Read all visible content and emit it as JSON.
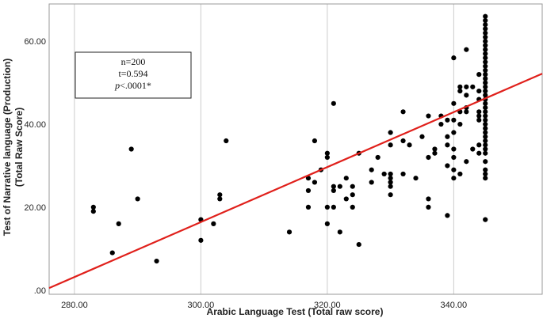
{
  "chart_data": {
    "type": "scatter",
    "title": "",
    "xlabel": "Arabic Language Test (Total raw score)",
    "ylabel_lines": [
      "Test of Narrative language (Production)",
      "(Total Raw Score)"
    ],
    "xlim": [
      276,
      354
    ],
    "ylim": [
      -1,
      69
    ],
    "x_ticks": [
      280,
      300,
      320,
      340
    ],
    "x_tick_labels": [
      "280.00",
      "300.00",
      "320.00",
      "340.00"
    ],
    "y_ticks": [
      0,
      20,
      40,
      60
    ],
    "y_tick_labels": [
      ".00",
      "20.00",
      "40.00",
      "60.00"
    ],
    "grid": {
      "vertical": true,
      "horizontal": false
    },
    "colors": {
      "points": "#000000",
      "fit_line": "#e0201b",
      "grid": "#cccccc",
      "axes": "#999999"
    },
    "annotation": {
      "line1": "n=200",
      "line2": "t=0.594",
      "line3_italic": "p",
      "line3_rest": "<.0001*"
    },
    "fit_line": {
      "x": [
        276,
        354
      ],
      "y": [
        0.5,
        52.2
      ]
    },
    "points": [
      [
        283,
        20
      ],
      [
        283,
        19
      ],
      [
        286,
        9
      ],
      [
        287,
        16
      ],
      [
        289,
        34
      ],
      [
        290,
        22
      ],
      [
        293,
        7
      ],
      [
        300,
        17
      ],
      [
        300,
        12
      ],
      [
        302,
        16
      ],
      [
        303,
        23
      ],
      [
        303,
        22
      ],
      [
        304,
        36
      ],
      [
        314,
        14
      ],
      [
        317,
        27
      ],
      [
        317,
        24
      ],
      [
        317,
        20
      ],
      [
        318,
        36
      ],
      [
        318,
        26
      ],
      [
        319,
        29
      ],
      [
        320,
        33
      ],
      [
        320,
        32
      ],
      [
        320,
        20
      ],
      [
        320,
        16
      ],
      [
        321,
        45
      ],
      [
        321,
        25
      ],
      [
        321,
        24
      ],
      [
        321,
        20
      ],
      [
        322,
        25
      ],
      [
        322,
        14
      ],
      [
        323,
        22
      ],
      [
        323,
        27
      ],
      [
        324,
        25
      ],
      [
        324,
        23
      ],
      [
        324,
        20
      ],
      [
        325,
        33
      ],
      [
        325,
        11
      ],
      [
        327,
        29
      ],
      [
        327,
        26
      ],
      [
        328,
        32
      ],
      [
        329,
        28
      ],
      [
        330,
        38
      ],
      [
        330,
        35
      ],
      [
        330,
        28
      ],
      [
        330,
        27
      ],
      [
        330,
        26
      ],
      [
        330,
        25
      ],
      [
        330,
        23
      ],
      [
        332,
        43
      ],
      [
        332,
        36
      ],
      [
        332,
        28
      ],
      [
        333,
        35
      ],
      [
        334,
        27
      ],
      [
        335,
        37
      ],
      [
        336,
        42
      ],
      [
        336,
        32
      ],
      [
        336,
        22
      ],
      [
        336,
        20
      ],
      [
        337,
        34
      ],
      [
        337,
        33
      ],
      [
        338,
        42
      ],
      [
        338,
        40
      ],
      [
        339,
        41
      ],
      [
        339,
        37
      ],
      [
        339,
        35
      ],
      [
        339,
        30
      ],
      [
        339,
        18
      ],
      [
        340,
        56
      ],
      [
        340,
        45
      ],
      [
        340,
        41
      ],
      [
        340,
        38
      ],
      [
        340,
        34
      ],
      [
        340,
        32
      ],
      [
        340,
        29
      ],
      [
        340,
        27
      ],
      [
        341,
        49
      ],
      [
        341,
        48
      ],
      [
        341,
        43
      ],
      [
        341,
        40
      ],
      [
        341,
        28
      ],
      [
        342,
        58
      ],
      [
        342,
        49
      ],
      [
        342,
        47
      ],
      [
        342,
        44
      ],
      [
        342,
        43
      ],
      [
        342,
        31
      ],
      [
        343,
        49
      ],
      [
        343,
        34
      ],
      [
        344,
        52
      ],
      [
        344,
        48
      ],
      [
        344,
        46
      ],
      [
        344,
        43
      ],
      [
        344,
        42
      ],
      [
        344,
        41
      ],
      [
        344,
        35
      ],
      [
        344,
        33
      ],
      [
        345,
        66
      ],
      [
        345,
        65
      ],
      [
        345,
        64
      ],
      [
        345,
        63
      ],
      [
        345,
        62
      ],
      [
        345,
        61
      ],
      [
        345,
        60
      ],
      [
        345,
        59
      ],
      [
        345,
        58
      ],
      [
        345,
        57
      ],
      [
        345,
        56
      ],
      [
        345,
        55
      ],
      [
        345,
        54
      ],
      [
        345,
        53
      ],
      [
        345,
        52
      ],
      [
        345,
        51
      ],
      [
        345,
        50
      ],
      [
        345,
        49
      ],
      [
        345,
        48
      ],
      [
        345,
        47
      ],
      [
        345,
        46
      ],
      [
        345,
        45
      ],
      [
        345,
        44
      ],
      [
        345,
        43
      ],
      [
        345,
        42
      ],
      [
        345,
        41
      ],
      [
        345,
        40
      ],
      [
        345,
        39
      ],
      [
        345,
        38
      ],
      [
        345,
        37
      ],
      [
        345,
        36
      ],
      [
        345,
        35
      ],
      [
        345,
        34
      ],
      [
        345,
        33
      ],
      [
        345,
        31
      ],
      [
        345,
        29
      ],
      [
        345,
        28
      ],
      [
        345,
        27
      ],
      [
        345,
        17
      ]
    ]
  }
}
